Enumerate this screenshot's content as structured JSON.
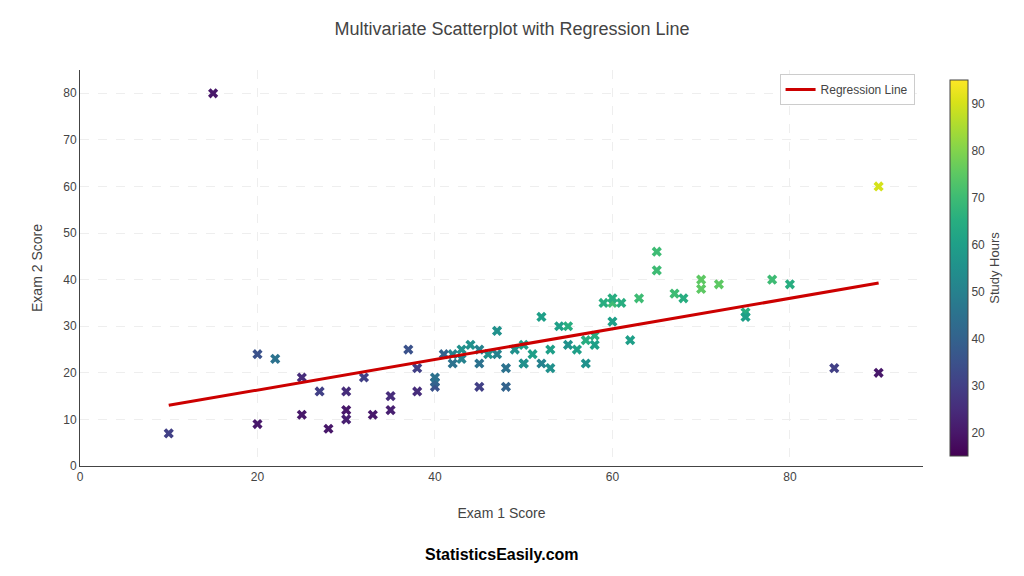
{
  "chart_data": {
    "type": "scatter",
    "title": "Multivariate Scatterplot with Regression Line",
    "xlabel": "Exam 1 Score",
    "ylabel": "Exam 2 Score",
    "x": [
      10,
      15,
      20,
      20,
      22,
      25,
      25,
      27,
      28,
      30,
      30,
      30,
      32,
      33,
      35,
      35,
      37,
      38,
      38,
      40,
      40,
      40,
      41,
      42,
      42,
      43,
      43,
      44,
      45,
      45,
      45,
      46,
      47,
      47,
      48,
      48,
      49,
      50,
      50,
      50,
      51,
      52,
      52,
      53,
      53,
      54,
      55,
      55,
      56,
      57,
      57,
      58,
      58,
      59,
      60,
      60,
      60,
      61,
      62,
      63,
      65,
      65,
      67,
      68,
      70,
      70,
      72,
      75,
      75,
      78,
      80,
      85,
      90,
      90
    ],
    "values": [
      7,
      80,
      24,
      9,
      23,
      19,
      11,
      16,
      8,
      12,
      16,
      10,
      19,
      11,
      12,
      15,
      25,
      21,
      16,
      17,
      18,
      19,
      24,
      22,
      24,
      23,
      25,
      26,
      25,
      17,
      22,
      24,
      29,
      24,
      21,
      17,
      25,
      26,
      22,
      22,
      24,
      32,
      22,
      25,
      21,
      30,
      30,
      26,
      25,
      27,
      22,
      28,
      26,
      35,
      35,
      36,
      31,
      35,
      27,
      36,
      46,
      42,
      37,
      36,
      38,
      40,
      39,
      33,
      32,
      40,
      39,
      21,
      60,
      20
    ],
    "marker": "x",
    "color_values": [
      30,
      20,
      35,
      20,
      45,
      25,
      20,
      30,
      20,
      20,
      25,
      22,
      30,
      20,
      22,
      25,
      35,
      30,
      25,
      35,
      40,
      45,
      40,
      45,
      50,
      50,
      55,
      55,
      50,
      30,
      45,
      55,
      55,
      50,
      45,
      40,
      55,
      60,
      50,
      55,
      60,
      60,
      50,
      60,
      55,
      60,
      65,
      55,
      60,
      65,
      55,
      65,
      60,
      65,
      70,
      65,
      60,
      65,
      60,
      70,
      70,
      70,
      70,
      65,
      75,
      75,
      75,
      65,
      60,
      70,
      65,
      30,
      90,
      20
    ],
    "color_range": [
      15,
      95
    ],
    "color_ticks": [
      20,
      30,
      40,
      50,
      60,
      70,
      80,
      90
    ],
    "colorbar_label": "Study Hours",
    "series": [
      {
        "name": "Regression Line",
        "type": "line",
        "color": "#cc0000",
        "x": [
          10,
          90
        ],
        "values": [
          13.0201,
          39.2717
        ]
      }
    ],
    "annotations": [
      {
        "text": "StatisticsEasily.com"
      }
    ],
    "xlim": [
      0,
      95
    ],
    "ylim": [
      0,
      85
    ],
    "xticks": [
      0,
      20,
      40,
      60,
      80
    ],
    "yticks": [
      0,
      10,
      20,
      30,
      40,
      50,
      60,
      70,
      80
    ],
    "grid": true,
    "legend": "upper right"
  }
}
